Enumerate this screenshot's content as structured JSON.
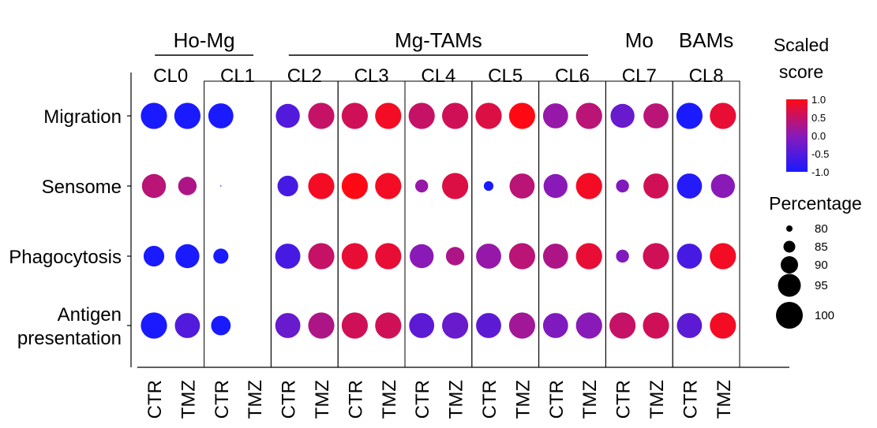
{
  "chart_data": {
    "type": "dotplot",
    "group_headers": [
      {
        "label": "Ho-Mg",
        "clusters": [
          "CL0",
          "CL1"
        ]
      },
      {
        "label": "Mg-TAMs",
        "clusters": [
          "CL2",
          "CL3",
          "CL4",
          "CL5",
          "CL6"
        ]
      },
      {
        "label": "Mo",
        "clusters": [
          "CL7"
        ]
      },
      {
        "label": "BAMs",
        "clusters": [
          "CL8"
        ]
      }
    ],
    "clusters": [
      "CL0",
      "CL1",
      "CL2",
      "CL3",
      "CL4",
      "CL5",
      "CL6",
      "CL7",
      "CL8"
    ],
    "conditions": [
      "CTR",
      "TMZ"
    ],
    "rows": [
      "Migration",
      "Sensome",
      "Phagocytosis",
      "Antigen presentation"
    ],
    "row_label_lines": [
      [
        "Migration"
      ],
      [
        "Sensome"
      ],
      [
        "Phagocytosis"
      ],
      [
        "Antigen",
        "presentation"
      ]
    ],
    "points": [
      {
        "row": "Migration",
        "cluster": "CL0",
        "condition": "CTR",
        "score": -1.0,
        "percentage": 98
      },
      {
        "row": "Migration",
        "cluster": "CL0",
        "condition": "TMZ",
        "score": -1.0,
        "percentage": 98
      },
      {
        "row": "Migration",
        "cluster": "CL1",
        "condition": "CTR",
        "score": -1.0,
        "percentage": 97
      },
      {
        "row": "Migration",
        "cluster": "CL2",
        "condition": "CTR",
        "score": -0.5,
        "percentage": 96
      },
      {
        "row": "Migration",
        "cluster": "CL2",
        "condition": "TMZ",
        "score": 0.5,
        "percentage": 98
      },
      {
        "row": "Migration",
        "cluster": "CL3",
        "condition": "CTR",
        "score": 0.6,
        "percentage": 98
      },
      {
        "row": "Migration",
        "cluster": "CL3",
        "condition": "TMZ",
        "score": 0.9,
        "percentage": 98
      },
      {
        "row": "Migration",
        "cluster": "CL4",
        "condition": "CTR",
        "score": 0.5,
        "percentage": 98
      },
      {
        "row": "Migration",
        "cluster": "CL4",
        "condition": "TMZ",
        "score": 0.6,
        "percentage": 98
      },
      {
        "row": "Migration",
        "cluster": "CL5",
        "condition": "CTR",
        "score": 0.7,
        "percentage": 98
      },
      {
        "row": "Migration",
        "cluster": "CL5",
        "condition": "TMZ",
        "score": 1.0,
        "percentage": 98
      },
      {
        "row": "Migration",
        "cluster": "CL6",
        "condition": "CTR",
        "score": 0.1,
        "percentage": 97
      },
      {
        "row": "Migration",
        "cluster": "CL6",
        "condition": "TMZ",
        "score": 0.4,
        "percentage": 98
      },
      {
        "row": "Migration",
        "cluster": "CL7",
        "condition": "CTR",
        "score": -0.3,
        "percentage": 96
      },
      {
        "row": "Migration",
        "cluster": "CL7",
        "condition": "TMZ",
        "score": 0.4,
        "percentage": 97
      },
      {
        "row": "Migration",
        "cluster": "CL8",
        "condition": "CTR",
        "score": -1.0,
        "percentage": 98
      },
      {
        "row": "Migration",
        "cluster": "CL8",
        "condition": "TMZ",
        "score": 0.8,
        "percentage": 98
      },
      {
        "row": "Sensome",
        "cluster": "CL0",
        "condition": "CTR",
        "score": 0.4,
        "percentage": 96
      },
      {
        "row": "Sensome",
        "cluster": "CL0",
        "condition": "TMZ",
        "score": 0.3,
        "percentage": 91
      },
      {
        "row": "Sensome",
        "cluster": "CL1",
        "condition": "CTR",
        "score": -0.8,
        "percentage": 75
      },
      {
        "row": "Sensome",
        "cluster": "CL2",
        "condition": "CTR",
        "score": -0.6,
        "percentage": 93
      },
      {
        "row": "Sensome",
        "cluster": "CL2",
        "condition": "TMZ",
        "score": 0.9,
        "percentage": 98
      },
      {
        "row": "Sensome",
        "cluster": "CL3",
        "condition": "CTR",
        "score": 1.0,
        "percentage": 98
      },
      {
        "row": "Sensome",
        "cluster": "CL3",
        "condition": "TMZ",
        "score": 0.9,
        "percentage": 98
      },
      {
        "row": "Sensome",
        "cluster": "CL4",
        "condition": "CTR",
        "score": 0.1,
        "percentage": 86
      },
      {
        "row": "Sensome",
        "cluster": "CL4",
        "condition": "TMZ",
        "score": 0.7,
        "percentage": 98
      },
      {
        "row": "Sensome",
        "cluster": "CL5",
        "condition": "CTR",
        "score": -1.0,
        "percentage": 83
      },
      {
        "row": "Sensome",
        "cluster": "CL5",
        "condition": "TMZ",
        "score": 0.4,
        "percentage": 97
      },
      {
        "row": "Sensome",
        "cluster": "CL6",
        "condition": "CTR",
        "score": 0.0,
        "percentage": 96
      },
      {
        "row": "Sensome",
        "cluster": "CL6",
        "condition": "TMZ",
        "score": 0.9,
        "percentage": 98
      },
      {
        "row": "Sensome",
        "cluster": "CL7",
        "condition": "CTR",
        "score": -0.1,
        "percentage": 86
      },
      {
        "row": "Sensome",
        "cluster": "CL7",
        "condition": "TMZ",
        "score": 0.6,
        "percentage": 97
      },
      {
        "row": "Sensome",
        "cluster": "CL8",
        "condition": "CTR",
        "score": -0.9,
        "percentage": 97
      },
      {
        "row": "Sensome",
        "cluster": "CL8",
        "condition": "TMZ",
        "score": 0.0,
        "percentage": 96
      },
      {
        "row": "Phagocytosis",
        "cluster": "CL0",
        "condition": "CTR",
        "score": -1.0,
        "percentage": 93
      },
      {
        "row": "Phagocytosis",
        "cluster": "CL0",
        "condition": "TMZ",
        "score": -1.0,
        "percentage": 96
      },
      {
        "row": "Phagocytosis",
        "cluster": "CL1",
        "condition": "CTR",
        "score": -1.0,
        "percentage": 88
      },
      {
        "row": "Phagocytosis",
        "cluster": "CL2",
        "condition": "CTR",
        "score": -0.6,
        "percentage": 97
      },
      {
        "row": "Phagocytosis",
        "cluster": "CL2",
        "condition": "TMZ",
        "score": 0.5,
        "percentage": 98
      },
      {
        "row": "Phagocytosis",
        "cluster": "CL3",
        "condition": "CTR",
        "score": 0.8,
        "percentage": 98
      },
      {
        "row": "Phagocytosis",
        "cluster": "CL3",
        "condition": "TMZ",
        "score": 0.8,
        "percentage": 98
      },
      {
        "row": "Phagocytosis",
        "cluster": "CL4",
        "condition": "CTR",
        "score": 0.0,
        "percentage": 96
      },
      {
        "row": "Phagocytosis",
        "cluster": "CL4",
        "condition": "TMZ",
        "score": 0.3,
        "percentage": 91
      },
      {
        "row": "Phagocytosis",
        "cluster": "CL5",
        "condition": "CTR",
        "score": 0.1,
        "percentage": 97
      },
      {
        "row": "Phagocytosis",
        "cluster": "CL5",
        "condition": "TMZ",
        "score": 0.4,
        "percentage": 98
      },
      {
        "row": "Phagocytosis",
        "cluster": "CL6",
        "condition": "CTR",
        "score": 0.3,
        "percentage": 97
      },
      {
        "row": "Phagocytosis",
        "cluster": "CL6",
        "condition": "TMZ",
        "score": 0.8,
        "percentage": 98
      },
      {
        "row": "Phagocytosis",
        "cluster": "CL7",
        "condition": "CTR",
        "score": -0.1,
        "percentage": 86
      },
      {
        "row": "Phagocytosis",
        "cluster": "CL7",
        "condition": "TMZ",
        "score": 0.6,
        "percentage": 98
      },
      {
        "row": "Phagocytosis",
        "cluster": "CL8",
        "condition": "CTR",
        "score": -0.6,
        "percentage": 97
      },
      {
        "row": "Phagocytosis",
        "cluster": "CL8",
        "condition": "TMZ",
        "score": 0.9,
        "percentage": 98
      },
      {
        "row": "Antigen presentation",
        "cluster": "CL0",
        "condition": "CTR",
        "score": -1.0,
        "percentage": 98
      },
      {
        "row": "Antigen presentation",
        "cluster": "CL0",
        "condition": "TMZ",
        "score": -0.5,
        "percentage": 97
      },
      {
        "row": "Antigen presentation",
        "cluster": "CL1",
        "condition": "CTR",
        "score": -1.0,
        "percentage": 92
      },
      {
        "row": "Antigen presentation",
        "cluster": "CL2",
        "condition": "CTR",
        "score": -0.3,
        "percentage": 97
      },
      {
        "row": "Antigen presentation",
        "cluster": "CL2",
        "condition": "TMZ",
        "score": 0.3,
        "percentage": 98
      },
      {
        "row": "Antigen presentation",
        "cluster": "CL3",
        "condition": "CTR",
        "score": 0.6,
        "percentage": 98
      },
      {
        "row": "Antigen presentation",
        "cluster": "CL3",
        "condition": "TMZ",
        "score": 0.6,
        "percentage": 98
      },
      {
        "row": "Antigen presentation",
        "cluster": "CL4",
        "condition": "CTR",
        "score": -0.4,
        "percentage": 97
      },
      {
        "row": "Antigen presentation",
        "cluster": "CL4",
        "condition": "TMZ",
        "score": -0.3,
        "percentage": 98
      },
      {
        "row": "Antigen presentation",
        "cluster": "CL5",
        "condition": "CTR",
        "score": -0.4,
        "percentage": 97
      },
      {
        "row": "Antigen presentation",
        "cluster": "CL5",
        "condition": "TMZ",
        "score": 0.2,
        "percentage": 98
      },
      {
        "row": "Antigen presentation",
        "cluster": "CL6",
        "condition": "CTR",
        "score": -0.1,
        "percentage": 97
      },
      {
        "row": "Antigen presentation",
        "cluster": "CL6",
        "condition": "TMZ",
        "score": 0.0,
        "percentage": 98
      },
      {
        "row": "Antigen presentation",
        "cluster": "CL7",
        "condition": "CTR",
        "score": 0.5,
        "percentage": 98
      },
      {
        "row": "Antigen presentation",
        "cluster": "CL7",
        "condition": "TMZ",
        "score": 0.6,
        "percentage": 98
      },
      {
        "row": "Antigen presentation",
        "cluster": "CL8",
        "condition": "CTR",
        "score": -0.4,
        "percentage": 97
      },
      {
        "row": "Antigen presentation",
        "cluster": "CL8",
        "condition": "TMZ",
        "score": 0.9,
        "percentage": 98
      }
    ],
    "color_legend": {
      "title_lines": [
        "Scaled",
        "score"
      ],
      "ticks": [
        "1.0",
        "0.5",
        "0.0",
        "-0.5",
        "-1.0"
      ],
      "range": [
        -1.0,
        1.0
      ],
      "colors": {
        "low": "#1a1aff",
        "mid": "#8a1ab8",
        "high": "#ff0a14"
      }
    },
    "size_legend": {
      "title": "Percentage",
      "values": [
        80,
        85,
        90,
        95,
        100
      ]
    }
  }
}
